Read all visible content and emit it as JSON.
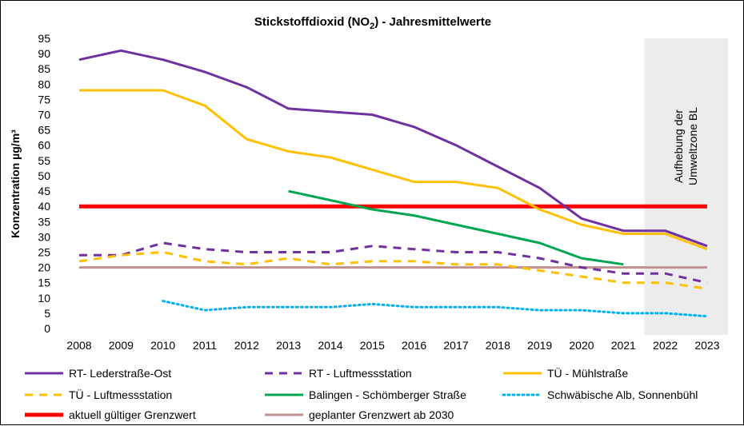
{
  "chart_data": {
    "type": "line",
    "title": "Stickstoffdioxid (NO",
    "title_sub": "2",
    "title_tail": ") - Jahresmittelwerte",
    "ylabel": "Konzentration µg/m³",
    "xlabel": "",
    "ylim": [
      0,
      95
    ],
    "ytick_step": 5,
    "categories": [
      "2008",
      "2009",
      "2010",
      "2011",
      "2012",
      "2013",
      "2014",
      "2015",
      "2016",
      "2017",
      "2018",
      "2019",
      "2020",
      "2021",
      "2022",
      "2023"
    ],
    "shaded_region": {
      "from": "2022",
      "to": "2023",
      "color": "#ececec"
    },
    "annotation": {
      "line1": "Aufhebung  der",
      "line2": "Umweltzone BL"
    },
    "series": [
      {
        "name": "RT- Lederstraße-Ost",
        "color": "#7030a0",
        "dash": "solid",
        "width": 3,
        "values": [
          88,
          91,
          88,
          84,
          79,
          72,
          71,
          70,
          66,
          60,
          53,
          46,
          36,
          32,
          32,
          27
        ]
      },
      {
        "name": "RT - Luftmessstation",
        "color": "#7030a0",
        "dash": "dashed",
        "width": 3,
        "values": [
          24,
          24,
          28,
          26,
          25,
          25,
          25,
          27,
          26,
          25,
          25,
          23,
          20,
          18,
          18,
          15
        ]
      },
      {
        "name": "TÜ - Mühlstraße",
        "color": "#ffc000",
        "dash": "solid",
        "width": 3,
        "values": [
          78,
          78,
          78,
          73,
          62,
          58,
          56,
          52,
          48,
          48,
          46,
          39,
          34,
          31,
          31,
          26
        ]
      },
      {
        "name": "TÜ - Luftmessstation",
        "color": "#ffc000",
        "dash": "dashed",
        "width": 3,
        "values": [
          22,
          24,
          25,
          22,
          21,
          23,
          21,
          22,
          22,
          21,
          21,
          19,
          17,
          15,
          15,
          13
        ]
      },
      {
        "name": "Balingen - Schömberger Straße",
        "color": "#00a651",
        "dash": "solid",
        "width": 3,
        "values": [
          null,
          null,
          null,
          null,
          null,
          45,
          42,
          39,
          37,
          34,
          31,
          28,
          23,
          21,
          null,
          null
        ]
      },
      {
        "name": "Schwäbische Alb, Sonnenbühl",
        "color": "#00b0f0",
        "dash": "dotted",
        "width": 3,
        "values": [
          null,
          null,
          9,
          6,
          7,
          7,
          7,
          8,
          7,
          7,
          7,
          6,
          6,
          5,
          5,
          4
        ]
      },
      {
        "name": "aktuell gültiger Grenzwert",
        "color": "#ff0000",
        "dash": "solid",
        "width": 5,
        "values": [
          40,
          40,
          40,
          40,
          40,
          40,
          40,
          40,
          40,
          40,
          40,
          40,
          40,
          40,
          40,
          40
        ]
      },
      {
        "name": "geplanter Grenzwert ab 2030",
        "color": "#c09090",
        "dash": "solid",
        "width": 3,
        "values": [
          20,
          20,
          20,
          20,
          20,
          20,
          20,
          20,
          20,
          20,
          20,
          20,
          20,
          20,
          20,
          20
        ]
      }
    ]
  }
}
